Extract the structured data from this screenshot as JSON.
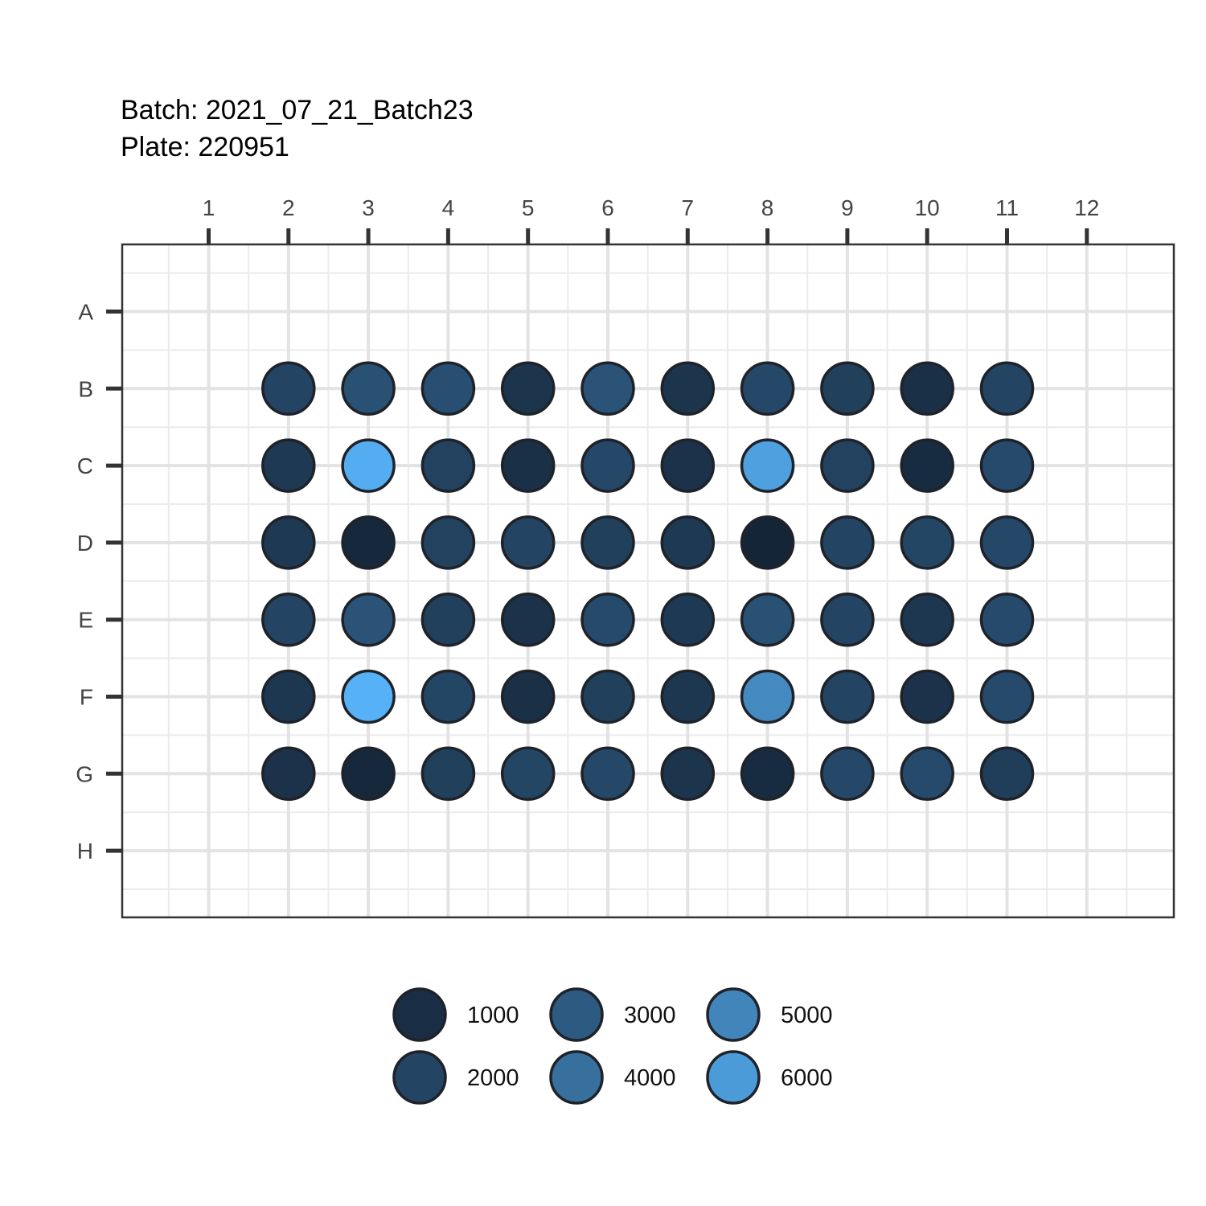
{
  "chart_data": {
    "type": "scatter",
    "title": "Batch: 2021_07_21_Batch23",
    "subtitle": "Plate: 220951",
    "x_ticks": [
      "1",
      "2",
      "3",
      "4",
      "5",
      "6",
      "7",
      "8",
      "9",
      "10",
      "11",
      "12"
    ],
    "y_ticks": [
      "A",
      "B",
      "C",
      "D",
      "E",
      "F",
      "G",
      "H"
    ],
    "grid": true,
    "legend_position": "bottom",
    "color_scale": {
      "low": "#132132",
      "high": "#56b1f7",
      "min": 400,
      "max": 7000
    },
    "legend": {
      "entries": [
        {
          "label": "1000",
          "value": 1000
        },
        {
          "label": "2000",
          "value": 2000
        },
        {
          "label": "3000",
          "value": 3000
        },
        {
          "label": "4000",
          "value": 4000
        },
        {
          "label": "5000",
          "value": 5000
        },
        {
          "label": "6000",
          "value": 6000
        }
      ]
    },
    "wells": [
      {
        "row": "B",
        "col": 2,
        "value": 2000
      },
      {
        "row": "B",
        "col": 3,
        "value": 2600
      },
      {
        "row": "B",
        "col": 4,
        "value": 2500
      },
      {
        "row": "B",
        "col": 5,
        "value": 1300
      },
      {
        "row": "B",
        "col": 6,
        "value": 2700
      },
      {
        "row": "B",
        "col": 7,
        "value": 1300
      },
      {
        "row": "B",
        "col": 8,
        "value": 2200
      },
      {
        "row": "B",
        "col": 9,
        "value": 1800
      },
      {
        "row": "B",
        "col": 10,
        "value": 1100
      },
      {
        "row": "B",
        "col": 11,
        "value": 2000
      },
      {
        "row": "C",
        "col": 2,
        "value": 1500
      },
      {
        "row": "C",
        "col": 3,
        "value": 6800
      },
      {
        "row": "C",
        "col": 4,
        "value": 1900
      },
      {
        "row": "C",
        "col": 5,
        "value": 1100
      },
      {
        "row": "C",
        "col": 6,
        "value": 2200
      },
      {
        "row": "C",
        "col": 7,
        "value": 1200
      },
      {
        "row": "C",
        "col": 8,
        "value": 6200
      },
      {
        "row": "C",
        "col": 9,
        "value": 1900
      },
      {
        "row": "C",
        "col": 10,
        "value": 900
      },
      {
        "row": "C",
        "col": 11,
        "value": 2300
      },
      {
        "row": "D",
        "col": 2,
        "value": 1500
      },
      {
        "row": "D",
        "col": 3,
        "value": 700
      },
      {
        "row": "D",
        "col": 4,
        "value": 1900
      },
      {
        "row": "D",
        "col": 5,
        "value": 2000
      },
      {
        "row": "D",
        "col": 6,
        "value": 1800
      },
      {
        "row": "D",
        "col": 7,
        "value": 1500
      },
      {
        "row": "D",
        "col": 8,
        "value": 600
      },
      {
        "row": "D",
        "col": 9,
        "value": 2000
      },
      {
        "row": "D",
        "col": 10,
        "value": 2100
      },
      {
        "row": "D",
        "col": 11,
        "value": 2200
      },
      {
        "row": "E",
        "col": 2,
        "value": 2000
      },
      {
        "row": "E",
        "col": 3,
        "value": 2700
      },
      {
        "row": "E",
        "col": 4,
        "value": 1800
      },
      {
        "row": "E",
        "col": 5,
        "value": 1200
      },
      {
        "row": "E",
        "col": 6,
        "value": 2300
      },
      {
        "row": "E",
        "col": 7,
        "value": 1500
      },
      {
        "row": "E",
        "col": 8,
        "value": 2600
      },
      {
        "row": "E",
        "col": 9,
        "value": 2000
      },
      {
        "row": "E",
        "col": 10,
        "value": 1400
      },
      {
        "row": "E",
        "col": 11,
        "value": 2300
      },
      {
        "row": "F",
        "col": 2,
        "value": 1400
      },
      {
        "row": "F",
        "col": 3,
        "value": 7000
      },
      {
        "row": "F",
        "col": 4,
        "value": 2100
      },
      {
        "row": "F",
        "col": 5,
        "value": 1100
      },
      {
        "row": "F",
        "col": 6,
        "value": 1800
      },
      {
        "row": "F",
        "col": 7,
        "value": 1400
      },
      {
        "row": "F",
        "col": 8,
        "value": 5200
      },
      {
        "row": "F",
        "col": 9,
        "value": 2000
      },
      {
        "row": "F",
        "col": 10,
        "value": 1200
      },
      {
        "row": "F",
        "col": 11,
        "value": 2300
      },
      {
        "row": "G",
        "col": 2,
        "value": 1200
      },
      {
        "row": "G",
        "col": 3,
        "value": 700
      },
      {
        "row": "G",
        "col": 4,
        "value": 1800
      },
      {
        "row": "G",
        "col": 5,
        "value": 2100
      },
      {
        "row": "G",
        "col": 6,
        "value": 2200
      },
      {
        "row": "G",
        "col": 7,
        "value": 1300
      },
      {
        "row": "G",
        "col": 8,
        "value": 900
      },
      {
        "row": "G",
        "col": 9,
        "value": 2200
      },
      {
        "row": "G",
        "col": 10,
        "value": 2300
      },
      {
        "row": "G",
        "col": 11,
        "value": 1700
      }
    ]
  }
}
